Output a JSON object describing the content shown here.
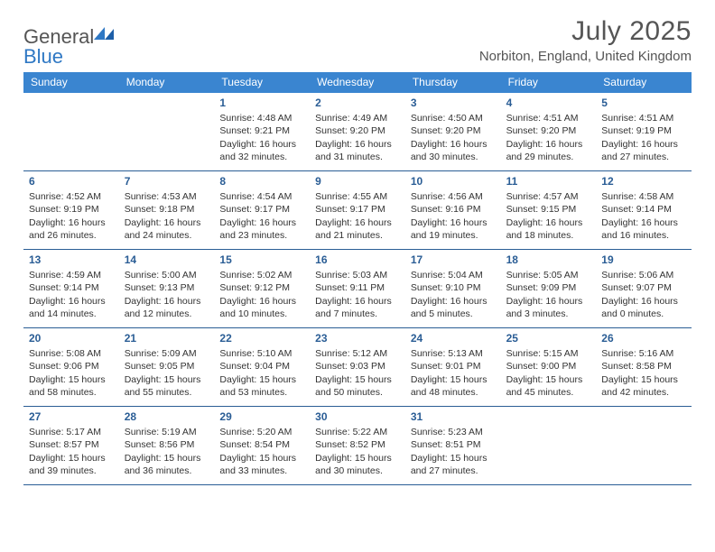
{
  "brand": {
    "general": "General",
    "blue": "Blue"
  },
  "title": {
    "month": "July 2025",
    "location": "Norbiton, England, United Kingdom"
  },
  "colors": {
    "header_bg": "#3a85d0",
    "row_border": "#2a5d95",
    "day_num": "#2a5d95",
    "logo_blue": "#2f78c4",
    "text_gray": "#555555"
  },
  "weekdays": [
    "Sunday",
    "Monday",
    "Tuesday",
    "Wednesday",
    "Thursday",
    "Friday",
    "Saturday"
  ],
  "calendar": {
    "type": "table",
    "columns": 7,
    "rows": 5,
    "first_weekday_index": 2,
    "days": [
      {
        "n": "1",
        "sunrise": "4:48 AM",
        "sunset": "9:21 PM",
        "dl_h": "16",
        "dl_m": "32"
      },
      {
        "n": "2",
        "sunrise": "4:49 AM",
        "sunset": "9:20 PM",
        "dl_h": "16",
        "dl_m": "31"
      },
      {
        "n": "3",
        "sunrise": "4:50 AM",
        "sunset": "9:20 PM",
        "dl_h": "16",
        "dl_m": "30"
      },
      {
        "n": "4",
        "sunrise": "4:51 AM",
        "sunset": "9:20 PM",
        "dl_h": "16",
        "dl_m": "29"
      },
      {
        "n": "5",
        "sunrise": "4:51 AM",
        "sunset": "9:19 PM",
        "dl_h": "16",
        "dl_m": "27"
      },
      {
        "n": "6",
        "sunrise": "4:52 AM",
        "sunset": "9:19 PM",
        "dl_h": "16",
        "dl_m": "26"
      },
      {
        "n": "7",
        "sunrise": "4:53 AM",
        "sunset": "9:18 PM",
        "dl_h": "16",
        "dl_m": "24"
      },
      {
        "n": "8",
        "sunrise": "4:54 AM",
        "sunset": "9:17 PM",
        "dl_h": "16",
        "dl_m": "23"
      },
      {
        "n": "9",
        "sunrise": "4:55 AM",
        "sunset": "9:17 PM",
        "dl_h": "16",
        "dl_m": "21"
      },
      {
        "n": "10",
        "sunrise": "4:56 AM",
        "sunset": "9:16 PM",
        "dl_h": "16",
        "dl_m": "19"
      },
      {
        "n": "11",
        "sunrise": "4:57 AM",
        "sunset": "9:15 PM",
        "dl_h": "16",
        "dl_m": "18"
      },
      {
        "n": "12",
        "sunrise": "4:58 AM",
        "sunset": "9:14 PM",
        "dl_h": "16",
        "dl_m": "16"
      },
      {
        "n": "13",
        "sunrise": "4:59 AM",
        "sunset": "9:14 PM",
        "dl_h": "16",
        "dl_m": "14"
      },
      {
        "n": "14",
        "sunrise": "5:00 AM",
        "sunset": "9:13 PM",
        "dl_h": "16",
        "dl_m": "12"
      },
      {
        "n": "15",
        "sunrise": "5:02 AM",
        "sunset": "9:12 PM",
        "dl_h": "16",
        "dl_m": "10"
      },
      {
        "n": "16",
        "sunrise": "5:03 AM",
        "sunset": "9:11 PM",
        "dl_h": "16",
        "dl_m": "7"
      },
      {
        "n": "17",
        "sunrise": "5:04 AM",
        "sunset": "9:10 PM",
        "dl_h": "16",
        "dl_m": "5"
      },
      {
        "n": "18",
        "sunrise": "5:05 AM",
        "sunset": "9:09 PM",
        "dl_h": "16",
        "dl_m": "3"
      },
      {
        "n": "19",
        "sunrise": "5:06 AM",
        "sunset": "9:07 PM",
        "dl_h": "16",
        "dl_m": "0"
      },
      {
        "n": "20",
        "sunrise": "5:08 AM",
        "sunset": "9:06 PM",
        "dl_h": "15",
        "dl_m": "58"
      },
      {
        "n": "21",
        "sunrise": "5:09 AM",
        "sunset": "9:05 PM",
        "dl_h": "15",
        "dl_m": "55"
      },
      {
        "n": "22",
        "sunrise": "5:10 AM",
        "sunset": "9:04 PM",
        "dl_h": "15",
        "dl_m": "53"
      },
      {
        "n": "23",
        "sunrise": "5:12 AM",
        "sunset": "9:03 PM",
        "dl_h": "15",
        "dl_m": "50"
      },
      {
        "n": "24",
        "sunrise": "5:13 AM",
        "sunset": "9:01 PM",
        "dl_h": "15",
        "dl_m": "48"
      },
      {
        "n": "25",
        "sunrise": "5:15 AM",
        "sunset": "9:00 PM",
        "dl_h": "15",
        "dl_m": "45"
      },
      {
        "n": "26",
        "sunrise": "5:16 AM",
        "sunset": "8:58 PM",
        "dl_h": "15",
        "dl_m": "42"
      },
      {
        "n": "27",
        "sunrise": "5:17 AM",
        "sunset": "8:57 PM",
        "dl_h": "15",
        "dl_m": "39"
      },
      {
        "n": "28",
        "sunrise": "5:19 AM",
        "sunset": "8:56 PM",
        "dl_h": "15",
        "dl_m": "36"
      },
      {
        "n": "29",
        "sunrise": "5:20 AM",
        "sunset": "8:54 PM",
        "dl_h": "15",
        "dl_m": "33"
      },
      {
        "n": "30",
        "sunrise": "5:22 AM",
        "sunset": "8:52 PM",
        "dl_h": "15",
        "dl_m": "30"
      },
      {
        "n": "31",
        "sunrise": "5:23 AM",
        "sunset": "8:51 PM",
        "dl_h": "15",
        "dl_m": "27"
      }
    ]
  }
}
